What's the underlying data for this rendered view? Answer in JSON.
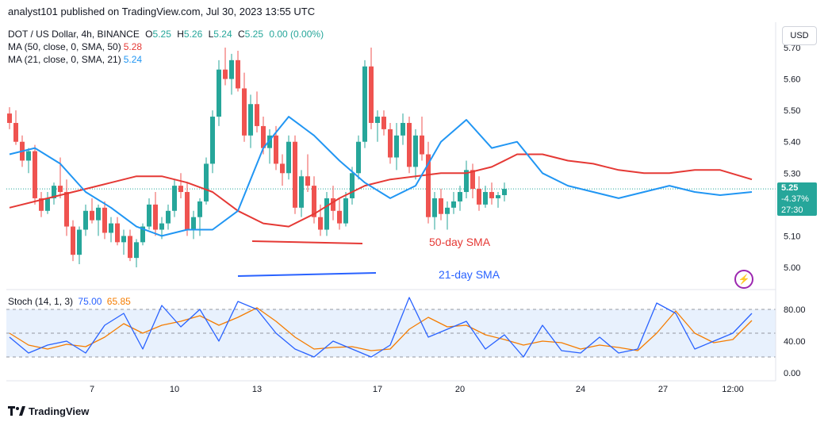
{
  "header": {
    "published": "analyst101 published on TradingView.com, Jul 30, 2023 13:55 UTC"
  },
  "legend": {
    "symbol": "DOT / US Dollar, 4h, BINANCE",
    "o_label": "O",
    "o": "5.25",
    "h_label": "H",
    "h": "5.26",
    "l_label": "L",
    "l": "5.24",
    "c_label": "C",
    "c": "5.25",
    "change": "0.00 (0.00%)",
    "ma50_label": "MA (50, close, 0, SMA, 50)",
    "ma50_value": "5.28",
    "ma21_label": "MA (21, close, 0, SMA, 21)",
    "ma21_value": "5.24",
    "stoch_label": "Stoch (14, 1, 3)",
    "stoch_k": "75.00",
    "stoch_d": "65.85"
  },
  "currency_button": "USD",
  "last_price": {
    "price": "5.25",
    "change": "-4.37%",
    "countdown": "27:30"
  },
  "annotations": {
    "sma50": "50-day SMA",
    "sma21": "21-day SMA"
  },
  "footer": {
    "brand": "TradingView"
  },
  "colors": {
    "up": "#26a69a",
    "down": "#ef5350",
    "ma50": "#e53935",
    "ma21": "#2196f3",
    "stoch_k": "#2962ff",
    "stoch_d": "#f57c00",
    "band": "#e8f1fd"
  },
  "chart_data": [
    {
      "type": "candlestick",
      "title": "DOT / US Dollar, 4h, BINANCE",
      "x_ticks": [
        "7",
        "10",
        "13",
        "17",
        "20",
        "24",
        "27",
        "12:00"
      ],
      "y_ticks": [
        "5.70",
        "5.60",
        "5.50",
        "5.40",
        "5.30",
        "5.10",
        "5.00"
      ],
      "ylim": [
        4.93,
        5.72
      ],
      "current_price": 5.25,
      "series": [
        {
          "name": "MA (50, close, 0, SMA, 50)",
          "x": [
            0,
            4,
            8,
            12,
            16,
            20,
            24,
            28,
            32,
            36,
            40,
            44,
            48,
            52,
            56,
            60,
            64,
            68,
            72,
            76,
            80,
            84,
            88,
            92,
            96,
            100,
            104,
            108,
            112,
            117
          ],
          "values": [
            5.19,
            5.21,
            5.23,
            5.25,
            5.27,
            5.29,
            5.29,
            5.27,
            5.24,
            5.18,
            5.14,
            5.13,
            5.17,
            5.22,
            5.26,
            5.28,
            5.29,
            5.3,
            5.3,
            5.32,
            5.36,
            5.36,
            5.34,
            5.33,
            5.31,
            5.3,
            5.3,
            5.31,
            5.31,
            5.28
          ]
        },
        {
          "name": "MA (21, close, 0, SMA, 21)",
          "x": [
            0,
            4,
            8,
            12,
            16,
            20,
            24,
            28,
            32,
            36,
            40,
            44,
            48,
            52,
            56,
            60,
            64,
            68,
            72,
            76,
            80,
            84,
            88,
            92,
            96,
            100,
            104,
            108,
            112,
            117
          ],
          "values": [
            5.36,
            5.38,
            5.33,
            5.24,
            5.19,
            5.13,
            5.1,
            5.12,
            5.12,
            5.18,
            5.38,
            5.48,
            5.42,
            5.34,
            5.27,
            5.22,
            5.26,
            5.4,
            5.47,
            5.38,
            5.4,
            5.3,
            5.26,
            5.24,
            5.22,
            5.24,
            5.26,
            5.24,
            5.23,
            5.24
          ]
        }
      ],
      "candles": [
        [
          5.49,
          5.51,
          5.44,
          5.46
        ],
        [
          5.46,
          5.5,
          5.39,
          5.4
        ],
        [
          5.4,
          5.42,
          5.32,
          5.34
        ],
        [
          5.34,
          5.38,
          5.3,
          5.37
        ],
        [
          5.37,
          5.39,
          5.2,
          5.22
        ],
        [
          5.22,
          5.24,
          5.16,
          5.18
        ],
        [
          5.18,
          5.24,
          5.17,
          5.22
        ],
        [
          5.22,
          5.27,
          5.2,
          5.26
        ],
        [
          5.26,
          5.35,
          5.22,
          5.24
        ],
        [
          5.24,
          5.28,
          5.1,
          5.13
        ],
        [
          5.13,
          5.15,
          5.02,
          5.04
        ],
        [
          5.04,
          5.13,
          5.01,
          5.12
        ],
        [
          5.12,
          5.2,
          5.1,
          5.18
        ],
        [
          5.18,
          5.22,
          5.14,
          5.15
        ],
        [
          5.15,
          5.2,
          5.1,
          5.19
        ],
        [
          5.19,
          5.21,
          5.09,
          5.11
        ],
        [
          5.11,
          5.16,
          5.08,
          5.14
        ],
        [
          5.14,
          5.16,
          5.07,
          5.08
        ],
        [
          5.08,
          5.12,
          5.04,
          5.1
        ],
        [
          5.1,
          5.12,
          5.02,
          5.03
        ],
        [
          5.03,
          5.09,
          5.0,
          5.08
        ],
        [
          5.08,
          5.14,
          5.07,
          5.13
        ],
        [
          5.13,
          5.22,
          5.12,
          5.2
        ],
        [
          5.2,
          5.24,
          5.1,
          5.12
        ],
        [
          5.12,
          5.16,
          5.09,
          5.14
        ],
        [
          5.14,
          5.2,
          5.12,
          5.18
        ],
        [
          5.18,
          5.28,
          5.16,
          5.26
        ],
        [
          5.26,
          5.3,
          5.22,
          5.24
        ],
        [
          5.24,
          5.27,
          5.1,
          5.12
        ],
        [
          5.12,
          5.18,
          5.09,
          5.16
        ],
        [
          5.16,
          5.22,
          5.1,
          5.21
        ],
        [
          5.21,
          5.35,
          5.2,
          5.33
        ],
        [
          5.33,
          5.5,
          5.3,
          5.48
        ],
        [
          5.48,
          5.66,
          5.45,
          5.63
        ],
        [
          5.63,
          5.7,
          5.58,
          5.6
        ],
        [
          5.6,
          5.68,
          5.55,
          5.66
        ],
        [
          5.66,
          5.69,
          5.56,
          5.57
        ],
        [
          5.57,
          5.62,
          5.4,
          5.42
        ],
        [
          5.42,
          5.55,
          5.38,
          5.52
        ],
        [
          5.52,
          5.56,
          5.43,
          5.45
        ],
        [
          5.45,
          5.48,
          5.36,
          5.38
        ],
        [
          5.38,
          5.44,
          5.33,
          5.42
        ],
        [
          5.42,
          5.45,
          5.31,
          5.33
        ],
        [
          5.33,
          5.36,
          5.26,
          5.3
        ],
        [
          5.3,
          5.42,
          5.28,
          5.4
        ],
        [
          5.4,
          5.42,
          5.17,
          5.19
        ],
        [
          5.19,
          5.31,
          5.16,
          5.29
        ],
        [
          5.29,
          5.36,
          5.24,
          5.26
        ],
        [
          5.26,
          5.29,
          5.14,
          5.16
        ],
        [
          5.16,
          5.2,
          5.1,
          5.12
        ],
        [
          5.12,
          5.24,
          5.1,
          5.22
        ],
        [
          5.22,
          5.26,
          5.15,
          5.18
        ],
        [
          5.18,
          5.22,
          5.12,
          5.14
        ],
        [
          5.14,
          5.24,
          5.13,
          5.22
        ],
        [
          5.22,
          5.32,
          5.2,
          5.3
        ],
        [
          5.3,
          5.42,
          5.28,
          5.4
        ],
        [
          5.4,
          5.66,
          5.38,
          5.64
        ],
        [
          5.64,
          5.7,
          5.44,
          5.46
        ],
        [
          5.46,
          5.5,
          5.4,
          5.48
        ],
        [
          5.48,
          5.5,
          5.42,
          5.44
        ],
        [
          5.44,
          5.46,
          5.33,
          5.35
        ],
        [
          5.35,
          5.46,
          5.31,
          5.42
        ],
        [
          5.42,
          5.49,
          5.39,
          5.46
        ],
        [
          5.46,
          5.48,
          5.3,
          5.32
        ],
        [
          5.32,
          5.44,
          5.28,
          5.42
        ],
        [
          5.42,
          5.48,
          5.34,
          5.36
        ],
        [
          5.36,
          5.4,
          5.14,
          5.16
        ],
        [
          5.16,
          5.24,
          5.12,
          5.22
        ],
        [
          5.22,
          5.25,
          5.15,
          5.17
        ],
        [
          5.17,
          5.21,
          5.12,
          5.19
        ],
        [
          5.19,
          5.24,
          5.17,
          5.21
        ],
        [
          5.21,
          5.26,
          5.18,
          5.24
        ],
        [
          5.24,
          5.34,
          5.22,
          5.31
        ],
        [
          5.31,
          5.33,
          5.22,
          5.25
        ],
        [
          5.25,
          5.29,
          5.18,
          5.2
        ],
        [
          5.2,
          5.26,
          5.19,
          5.24
        ],
        [
          5.24,
          5.27,
          5.2,
          5.22
        ],
        [
          5.22,
          5.24,
          5.19,
          5.23
        ],
        [
          5.23,
          5.27,
          5.21,
          5.25
        ]
      ]
    },
    {
      "type": "line",
      "title": "Stoch (14, 1, 3)",
      "y_ticks": [
        "80.00",
        "40.00",
        "0.00"
      ],
      "ylim": [
        -5,
        100
      ],
      "band": [
        20,
        80
      ],
      "series": [
        {
          "name": "%K",
          "x": [
            0,
            3,
            6,
            9,
            12,
            15,
            18,
            21,
            24,
            27,
            30,
            33,
            36,
            39,
            42,
            45,
            48,
            51,
            54,
            57,
            60,
            63,
            66,
            69,
            72,
            75,
            78,
            81,
            84,
            87,
            90,
            93,
            96,
            99,
            102,
            105,
            108,
            111,
            114,
            117
          ],
          "values": [
            45,
            25,
            35,
            40,
            25,
            60,
            75,
            30,
            85,
            58,
            80,
            40,
            90,
            80,
            50,
            30,
            20,
            40,
            30,
            20,
            35,
            95,
            45,
            55,
            65,
            30,
            48,
            20,
            60,
            28,
            25,
            45,
            25,
            30,
            88,
            75,
            30,
            40,
            50,
            75
          ]
        },
        {
          "name": "%D",
          "x": [
            0,
            3,
            6,
            9,
            12,
            15,
            18,
            21,
            24,
            27,
            30,
            33,
            36,
            39,
            42,
            45,
            48,
            51,
            54,
            57,
            60,
            63,
            66,
            69,
            72,
            75,
            78,
            81,
            84,
            87,
            90,
            93,
            96,
            99,
            102,
            105,
            108,
            111,
            114,
            117
          ],
          "values": [
            50,
            35,
            30,
            36,
            33,
            45,
            62,
            50,
            60,
            65,
            72,
            60,
            70,
            82,
            65,
            45,
            30,
            32,
            33,
            28,
            30,
            55,
            70,
            58,
            60,
            48,
            42,
            35,
            40,
            38,
            30,
            35,
            32,
            28,
            50,
            78,
            50,
            38,
            42,
            66
          ]
        }
      ]
    }
  ]
}
